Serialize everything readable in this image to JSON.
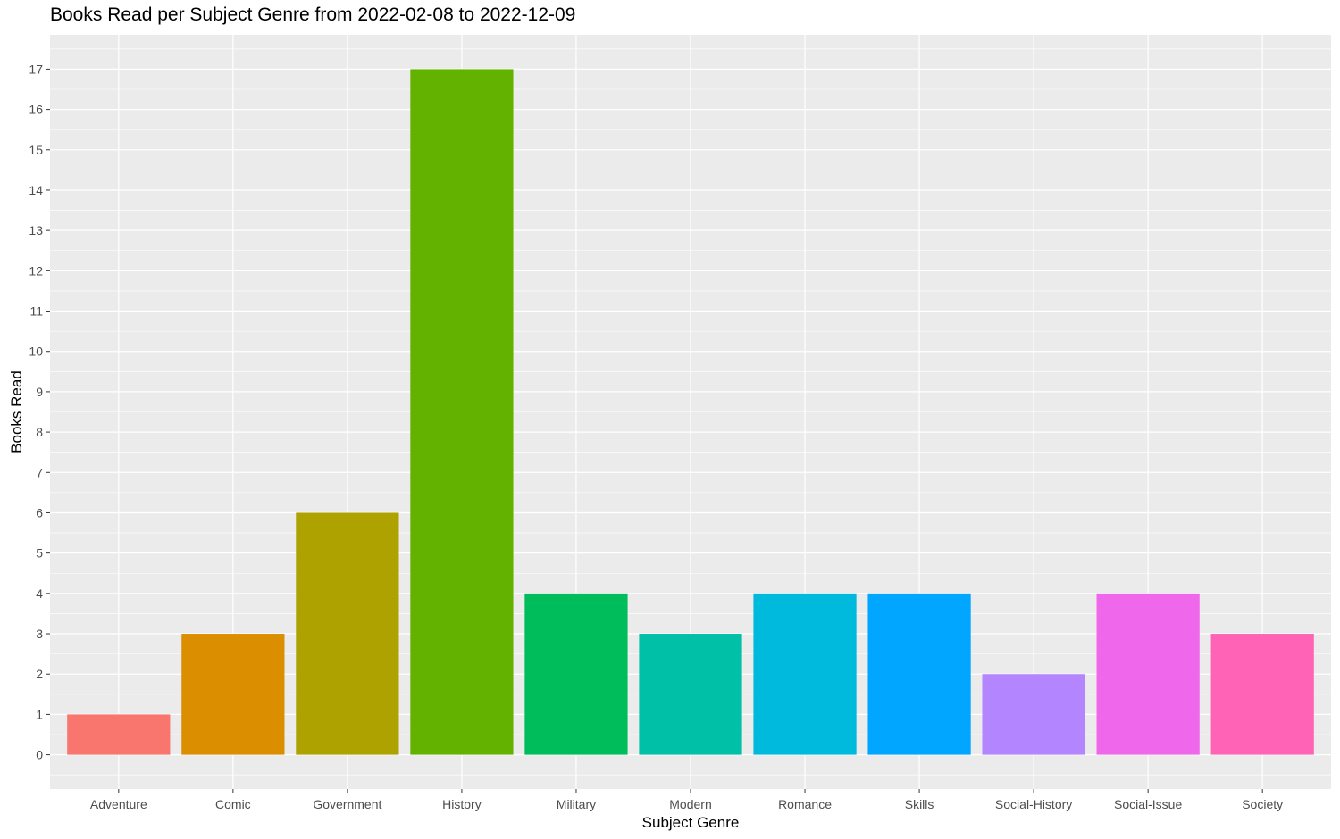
{
  "chart_data": {
    "type": "bar",
    "title": "Books Read per Subject Genre from 2022-02-08 to 2022-12-09",
    "xlabel": "Subject Genre",
    "ylabel": "Books Read",
    "categories": [
      "Adventure",
      "Comic",
      "Government",
      "History",
      "Military",
      "Modern",
      "Romance",
      "Skills",
      "Social-History",
      "Social-Issue",
      "Society"
    ],
    "values": [
      1,
      3,
      6,
      17,
      4,
      3,
      4,
      4,
      2,
      4,
      3
    ],
    "colors": [
      "#F8766D",
      "#DB8E00",
      "#AEA200",
      "#64B200",
      "#00BD5C",
      "#00C1A7",
      "#00BADE",
      "#00A6FF",
      "#B385FF",
      "#EF67EB",
      "#FF63B6"
    ],
    "ylim": [
      -0.85,
      17.85
    ],
    "yticks": [
      0,
      1,
      2,
      3,
      4,
      5,
      6,
      7,
      8,
      9,
      10,
      11,
      12,
      13,
      14,
      15,
      16,
      17
    ],
    "grid": true,
    "panel_background": "#EBEBEB",
    "legend": "none"
  }
}
